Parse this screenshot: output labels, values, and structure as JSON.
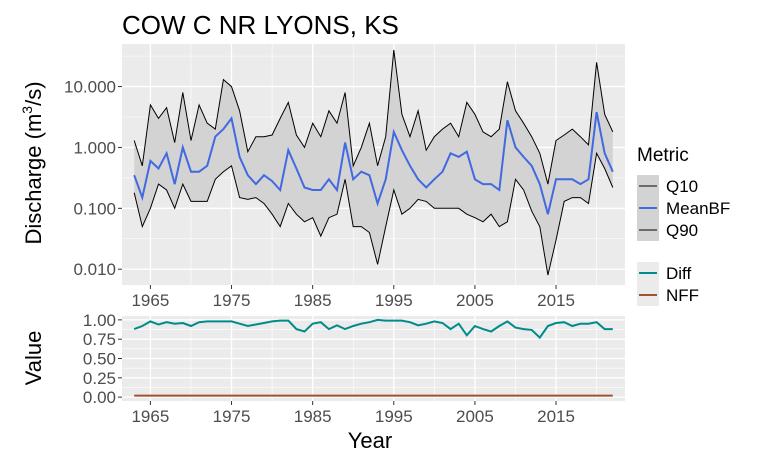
{
  "colors": {
    "panel": "#ebebeb",
    "grid_major": "#ffffff",
    "band_fill": "#d3d3d3",
    "q10": "#000000",
    "q90": "#000000",
    "meanbf": "#4169e1",
    "diff": "#008b8b",
    "nff": "#a0522d"
  },
  "chart_data": [
    {
      "type": "line",
      "title": "COW C NR LYONS, KS",
      "xlabel": "",
      "ylabel": "Discharge (m³/s)",
      "ylabel_base": "Discharge (m",
      "ylabel_sup": "3",
      "ylabel_end": "/s)",
      "yscale": "log10",
      "xlim": [
        1961.5,
        2023.5
      ],
      "ylim": [
        0.0055,
        50
      ],
      "xticks": [
        1965,
        1975,
        1985,
        1995,
        2005,
        2015
      ],
      "yticks": [
        0.01,
        0.1,
        1,
        10
      ],
      "ytick_labels": [
        "0.010",
        "0.100",
        "1.000",
        "10.000"
      ],
      "grid": true,
      "legend": {
        "title": "Metric",
        "position": "right",
        "entries": [
          "Q10",
          "MeanBF",
          "Q90"
        ]
      },
      "x": [
        1963,
        1964,
        1965,
        1966,
        1967,
        1968,
        1969,
        1970,
        1971,
        1972,
        1973,
        1974,
        1975,
        1976,
        1977,
        1978,
        1979,
        1980,
        1981,
        1982,
        1983,
        1984,
        1985,
        1986,
        1987,
        1988,
        1989,
        1990,
        1991,
        1992,
        1993,
        1994,
        1995,
        1996,
        1997,
        1998,
        1999,
        2000,
        2001,
        2002,
        2003,
        2004,
        2005,
        2006,
        2007,
        2008,
        2009,
        2010,
        2011,
        2012,
        2013,
        2014,
        2015,
        2016,
        2017,
        2018,
        2019,
        2020,
        2021,
        2022
      ],
      "series": [
        {
          "name": "Q10",
          "values": [
            1.3,
            0.5,
            5.0,
            3.0,
            4.5,
            1.2,
            8.0,
            1.3,
            5.0,
            2.5,
            2.0,
            13.0,
            10.0,
            4.0,
            0.85,
            1.5,
            1.5,
            1.6,
            3.0,
            5.5,
            1.6,
            1.0,
            2.5,
            1.5,
            4.0,
            2.5,
            8.0,
            0.5,
            1.0,
            2.5,
            0.5,
            1.5,
            40.0,
            3.5,
            1.5,
            4.0,
            0.9,
            1.5,
            2.0,
            2.5,
            1.5,
            5.5,
            3.5,
            1.8,
            1.5,
            2.0,
            12.0,
            4.0,
            2.5,
            1.5,
            0.8,
            0.25,
            1.3,
            1.6,
            2.0,
            1.5,
            1.1,
            25.0,
            3.5,
            1.8
          ]
        },
        {
          "name": "MeanBF",
          "values": [
            0.35,
            0.15,
            0.6,
            0.45,
            0.8,
            0.25,
            1.0,
            0.4,
            0.4,
            0.5,
            1.5,
            2.0,
            3.0,
            0.7,
            0.35,
            0.25,
            0.35,
            0.28,
            0.2,
            0.9,
            0.45,
            0.22,
            0.2,
            0.2,
            0.3,
            0.2,
            1.2,
            0.3,
            0.4,
            0.35,
            0.12,
            0.3,
            1.8,
            0.9,
            0.5,
            0.3,
            0.22,
            0.3,
            0.4,
            0.8,
            0.7,
            0.85,
            0.3,
            0.25,
            0.25,
            0.2,
            2.8,
            1.0,
            0.7,
            0.5,
            0.25,
            0.08,
            0.3,
            0.3,
            0.3,
            0.25,
            0.3,
            3.8,
            0.8,
            0.4
          ]
        },
        {
          "name": "Q90",
          "values": [
            0.18,
            0.05,
            0.1,
            0.25,
            0.2,
            0.1,
            0.25,
            0.13,
            0.13,
            0.13,
            0.3,
            0.4,
            0.5,
            0.15,
            0.14,
            0.15,
            0.12,
            0.08,
            0.05,
            0.12,
            0.08,
            0.06,
            0.07,
            0.035,
            0.07,
            0.08,
            0.3,
            0.05,
            0.05,
            0.04,
            0.012,
            0.05,
            0.2,
            0.08,
            0.1,
            0.14,
            0.13,
            0.1,
            0.1,
            0.1,
            0.1,
            0.08,
            0.07,
            0.06,
            0.08,
            0.05,
            0.06,
            0.3,
            0.2,
            0.09,
            0.05,
            0.008,
            0.03,
            0.13,
            0.15,
            0.15,
            0.12,
            0.8,
            0.45,
            0.22
          ]
        }
      ]
    },
    {
      "type": "line",
      "xlabel": "Year",
      "ylabel": "Value",
      "xlim": [
        1961.5,
        2023.5
      ],
      "ylim": [
        -0.05,
        1.05
      ],
      "xticks": [
        1965,
        1975,
        1985,
        1995,
        2005,
        2015
      ],
      "yticks": [
        0,
        0.25,
        0.5,
        0.75,
        1
      ],
      "ytick_labels": [
        "0.00",
        "0.25",
        "0.50",
        "0.75",
        "1.00"
      ],
      "grid": true,
      "legend": {
        "position": "right",
        "entries": [
          "Diff",
          "NFF"
        ]
      },
      "x": [
        1963,
        1964,
        1965,
        1966,
        1967,
        1968,
        1969,
        1970,
        1971,
        1972,
        1973,
        1974,
        1975,
        1976,
        1977,
        1978,
        1979,
        1980,
        1981,
        1982,
        1983,
        1984,
        1985,
        1986,
        1987,
        1988,
        1989,
        1990,
        1991,
        1992,
        1993,
        1994,
        1995,
        1996,
        1997,
        1998,
        1999,
        2000,
        2001,
        2002,
        2003,
        2004,
        2005,
        2006,
        2007,
        2008,
        2009,
        2010,
        2011,
        2012,
        2013,
        2014,
        2015,
        2016,
        2017,
        2018,
        2019,
        2020,
        2021,
        2022
      ],
      "series": [
        {
          "name": "Diff",
          "values": [
            0.88,
            0.92,
            0.98,
            0.94,
            0.97,
            0.95,
            0.96,
            0.92,
            0.97,
            0.98,
            0.98,
            0.98,
            0.98,
            0.95,
            0.92,
            0.94,
            0.96,
            0.98,
            0.99,
            0.99,
            0.88,
            0.85,
            0.95,
            0.97,
            0.88,
            0.93,
            0.88,
            0.92,
            0.95,
            0.97,
            1.0,
            0.99,
            0.99,
            0.99,
            0.97,
            0.93,
            0.95,
            0.98,
            0.96,
            0.88,
            0.95,
            0.8,
            0.92,
            0.88,
            0.85,
            0.92,
            0.98,
            0.9,
            0.88,
            0.87,
            0.77,
            0.92,
            0.96,
            0.97,
            0.92,
            0.95,
            0.95,
            0.97,
            0.88,
            0.88
          ]
        },
        {
          "name": "NFF",
          "values": [
            0.02,
            0.02,
            0.02,
            0.02,
            0.02,
            0.02,
            0.02,
            0.02,
            0.02,
            0.02,
            0.02,
            0.02,
            0.02,
            0.02,
            0.02,
            0.02,
            0.02,
            0.02,
            0.02,
            0.02,
            0.02,
            0.02,
            0.02,
            0.02,
            0.02,
            0.02,
            0.02,
            0.02,
            0.02,
            0.02,
            0.02,
            0.02,
            0.02,
            0.02,
            0.02,
            0.02,
            0.02,
            0.02,
            0.02,
            0.02,
            0.02,
            0.02,
            0.02,
            0.02,
            0.02,
            0.02,
            0.02,
            0.02,
            0.02,
            0.02,
            0.02,
            0.02,
            0.02,
            0.02,
            0.02,
            0.02,
            0.02,
            0.02,
            0.02,
            0.02
          ]
        }
      ]
    }
  ]
}
